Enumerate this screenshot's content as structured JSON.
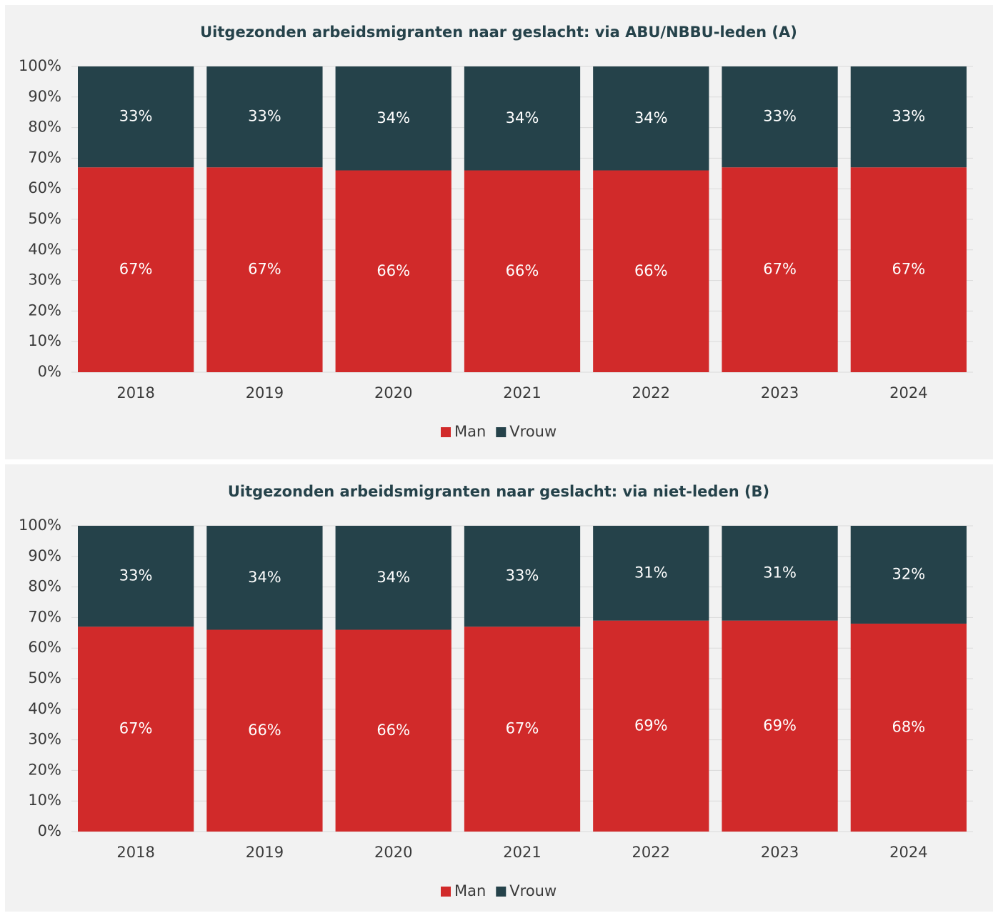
{
  "chart_data": [
    {
      "type": "stacked_bar",
      "title": "Uitgezonden arbeidsmigranten naar geslacht: via ABU/NBBU-leden (A)",
      "categories": [
        "2018",
        "2019",
        "2020",
        "2021",
        "2022",
        "2023",
        "2024"
      ],
      "series": [
        {
          "name": "Man",
          "color": "#d12a2a",
          "values": [
            67,
            67,
            66,
            66,
            66,
            67,
            67
          ],
          "value_labels": [
            "67%",
            "67%",
            "66%",
            "66%",
            "66%",
            "67%",
            "67%"
          ]
        },
        {
          "name": "Vrouw",
          "color": "#25424a",
          "values": [
            33,
            33,
            34,
            34,
            34,
            33,
            33
          ],
          "value_labels": [
            "33%",
            "33%",
            "34%",
            "34%",
            "34%",
            "33%",
            "33%"
          ]
        }
      ],
      "ylim": [
        0,
        100
      ],
      "yticks": [
        {
          "value": 0,
          "label": "0%"
        },
        {
          "value": 10,
          "label": "10%"
        },
        {
          "value": 20,
          "label": "20%"
        },
        {
          "value": 30,
          "label": "30%"
        },
        {
          "value": 40,
          "label": "40%"
        },
        {
          "value": 50,
          "label": "50%"
        },
        {
          "value": 60,
          "label": "60%"
        },
        {
          "value": 70,
          "label": "70%"
        },
        {
          "value": 80,
          "label": "80%"
        },
        {
          "value": 90,
          "label": "90%"
        },
        {
          "value": 100,
          "label": "100%"
        }
      ],
      "grid": true,
      "legend": "bottom"
    },
    {
      "type": "stacked_bar",
      "title": "Uitgezonden arbeidsmigranten naar geslacht: via niet-leden (B)",
      "categories": [
        "2018",
        "2019",
        "2020",
        "2021",
        "2022",
        "2023",
        "2024"
      ],
      "series": [
        {
          "name": "Man",
          "color": "#d12a2a",
          "values": [
            67,
            66,
            66,
            67,
            69,
            69,
            68
          ],
          "value_labels": [
            "67%",
            "66%",
            "66%",
            "67%",
            "69%",
            "69%",
            "68%"
          ]
        },
        {
          "name": "Vrouw",
          "color": "#25424a",
          "values": [
            33,
            34,
            34,
            33,
            31,
            31,
            32
          ],
          "value_labels": [
            "33%",
            "34%",
            "34%",
            "33%",
            "31%",
            "31%",
            "32%"
          ]
        }
      ],
      "ylim": [
        0,
        100
      ],
      "yticks": [
        {
          "value": 0,
          "label": "0%"
        },
        {
          "value": 10,
          "label": "10%"
        },
        {
          "value": 20,
          "label": "20%"
        },
        {
          "value": 30,
          "label": "30%"
        },
        {
          "value": 40,
          "label": "40%"
        },
        {
          "value": 50,
          "label": "50%"
        },
        {
          "value": 60,
          "label": "60%"
        },
        {
          "value": 70,
          "label": "70%"
        },
        {
          "value": 80,
          "label": "80%"
        },
        {
          "value": 90,
          "label": "90%"
        },
        {
          "value": 100,
          "label": "100%"
        }
      ],
      "grid": true,
      "legend": "bottom"
    }
  ]
}
